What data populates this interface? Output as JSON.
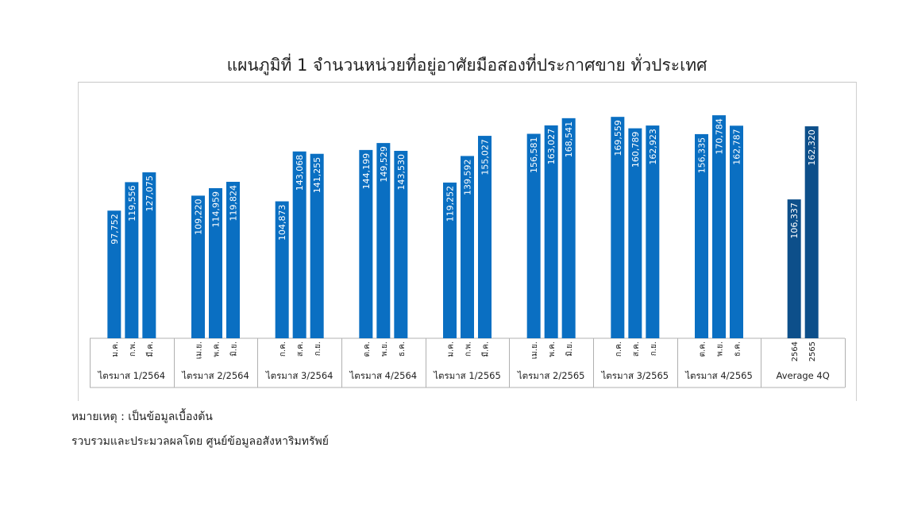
{
  "title": "แผนภูมิที่ 1 จำนวนหน่วยที่อยู่อาศัยมือสองที่ประกาศขาย ทั่วประเทศ",
  "notes": {
    "remark": "หมายเหตุ : เป็นข้อมูลเบื้องต้น",
    "source": "รวบรวมและประมวลผลโดย ศูนย์ข้อมูลอสังหาริมทรัพย์"
  },
  "colors": {
    "bar": "#0a6fc2",
    "bar_dark": "#0d4f8a",
    "label": "#ffffff"
  },
  "chart_data": {
    "type": "bar",
    "title": "แผนภูมิที่ 1 จำนวนหน่วยที่อยู่อาศัยมือสองที่ประกาศขาย ทั่วประเทศ",
    "ylim": [
      0,
      180000
    ],
    "grid": false,
    "groups": [
      {
        "label": "ไตรมาส 1/2564",
        "categories": [
          "ม.ค.",
          "ก.พ.",
          "มี.ค."
        ],
        "values": [
          97752,
          119556,
          127075
        ],
        "value_labels": [
          "97,752",
          "119,556",
          "127,075"
        ]
      },
      {
        "label": "ไตรมาส 2/2564",
        "categories": [
          "เม.ย.",
          "พ.ค.",
          "มิ.ย."
        ],
        "values": [
          109220,
          114959,
          119824
        ],
        "value_labels": [
          "109,220",
          "114,959",
          "119,824"
        ]
      },
      {
        "label": "ไตรมาส 3/2564",
        "categories": [
          "ก.ค.",
          "ส.ค.",
          "ก.ย."
        ],
        "values": [
          104873,
          143068,
          141255
        ],
        "value_labels": [
          "104,873",
          "143,068",
          "141,255"
        ]
      },
      {
        "label": "ไตรมาส 4/2564",
        "categories": [
          "ต.ค.",
          "พ.ย.",
          "ธ.ค."
        ],
        "values": [
          144199,
          149529,
          143530
        ],
        "value_labels": [
          "144,199",
          "149,529",
          "143,530"
        ]
      },
      {
        "label": "ไตรมาส 1/2565",
        "categories": [
          "ม.ค.",
          "ก.พ.",
          "มี.ค."
        ],
        "values": [
          119252,
          139592,
          155027
        ],
        "value_labels": [
          "119,252",
          "139,592",
          "155,027"
        ]
      },
      {
        "label": "ไตรมาส 2/2565",
        "categories": [
          "เม.ย.",
          "พ.ค.",
          "มิ.ย."
        ],
        "values": [
          156581,
          163027,
          168541
        ],
        "value_labels": [
          "156,581",
          "163,027",
          "168,541"
        ]
      },
      {
        "label": "ไตรมาส 3/2565",
        "categories": [
          "ก.ค.",
          "ส.ค.",
          "ก.ย."
        ],
        "values": [
          169559,
          160789,
          162923
        ],
        "value_labels": [
          "169,559",
          "160,789",
          "162,923"
        ]
      },
      {
        "label": "ไตรมาส 4/2565",
        "categories": [
          "ต.ค.",
          "พ.ย.",
          "ธ.ค."
        ],
        "values": [
          156335,
          170784,
          162787
        ],
        "value_labels": [
          "156,335",
          "170,784",
          "162,787"
        ]
      },
      {
        "label": "Average 4Q",
        "categories": [
          "2564",
          "2565"
        ],
        "values": [
          106337,
          162320
        ],
        "value_labels": [
          "106,337",
          "162,320"
        ]
      }
    ]
  }
}
